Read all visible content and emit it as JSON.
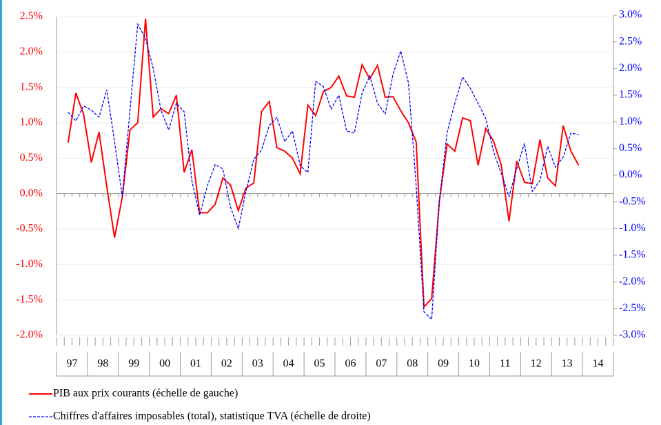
{
  "chart_data": {
    "type": "line",
    "categories": [
      "97",
      null,
      null,
      null,
      "98",
      null,
      null,
      null,
      "99",
      null,
      null,
      null,
      "00",
      null,
      null,
      null,
      "01",
      null,
      null,
      null,
      "02",
      null,
      null,
      null,
      "03",
      null,
      null,
      null,
      "04",
      null,
      null,
      null,
      "05",
      null,
      null,
      null,
      "06",
      null,
      null,
      null,
      "07",
      null,
      null,
      null,
      "08",
      null,
      null,
      null,
      "09",
      null,
      null,
      null,
      "10",
      null,
      null,
      null,
      "11",
      null,
      null,
      null,
      "12",
      null,
      null,
      null,
      "13",
      null,
      null,
      null,
      "14",
      null,
      null,
      null
    ],
    "series": [
      {
        "name": "PIB aux prix courants (échelle de gauche)",
        "color": "#ff0000",
        "style": "solid",
        "values": [
          null,
          0.72,
          1.42,
          1.12,
          0.44,
          0.87,
          0.1,
          -0.62,
          -0.05,
          0.9,
          1.0,
          2.47,
          1.08,
          1.2,
          1.13,
          1.39,
          0.3,
          0.62,
          -0.27,
          -0.27,
          -0.15,
          0.22,
          0.12,
          -0.24,
          0.08,
          0.15,
          1.16,
          1.3,
          0.65,
          0.6,
          0.5,
          0.28,
          1.25,
          1.1,
          1.44,
          1.5,
          1.66,
          1.38,
          1.36,
          1.82,
          1.62,
          1.81,
          1.36,
          1.37,
          1.17,
          1.0,
          0.73,
          -1.6,
          -1.48,
          -0.1,
          0.7,
          0.6,
          1.07,
          1.03,
          0.4,
          0.92,
          0.74,
          0.4,
          -0.39,
          0.46,
          0.16,
          0.14,
          0.76,
          0.22,
          0.11,
          0.96,
          0.6,
          0.4,
          null,
          null,
          null,
          null
        ]
      },
      {
        "name": "Chiffres d'affaires imposables (total), statistique TVA (échelle de droite)",
        "color": "#0000ff",
        "style": "dashed",
        "axis": "y2",
        "values": [
          null,
          1.18,
          1.02,
          1.3,
          1.22,
          1.09,
          1.6,
          0.63,
          -0.4,
          1.22,
          2.83,
          2.57,
          2.0,
          1.22,
          0.85,
          1.35,
          1.19,
          -0.1,
          -0.75,
          -0.2,
          0.2,
          0.12,
          -0.6,
          -1.0,
          -0.3,
          0.3,
          0.47,
          0.93,
          1.08,
          0.63,
          0.83,
          0.18,
          0.05,
          1.76,
          1.66,
          1.24,
          1.5,
          0.83,
          0.79,
          1.54,
          1.86,
          1.35,
          1.15,
          1.89,
          2.33,
          1.73,
          -0.2,
          -2.56,
          -2.7,
          -0.47,
          0.8,
          1.35,
          1.84,
          1.63,
          1.35,
          1.06,
          0.44,
          0.03,
          -0.4,
          0.12,
          0.6,
          -0.3,
          -0.1,
          0.54,
          0.15,
          0.34,
          0.79,
          0.76,
          null,
          null,
          null,
          null
        ]
      }
    ],
    "ylim": [
      -2.0,
      2.5
    ],
    "yticks": [
      {
        "value": -2.0,
        "label": "-2.0%"
      },
      {
        "value": -1.5,
        "label": "-1.5%"
      },
      {
        "value": -1.0,
        "label": "-1.0%"
      },
      {
        "value": -0.5,
        "label": "-0.5%"
      },
      {
        "value": 0,
        "label": "0.0%"
      },
      {
        "value": 0.5,
        "label": "0.5%"
      },
      {
        "value": 1.0,
        "label": "1.0%"
      },
      {
        "value": 1.5,
        "label": "1.5%"
      },
      {
        "value": 2.0,
        "label": "2.0%"
      },
      {
        "value": 2.5,
        "label": "2.5%"
      }
    ],
    "y2lim": [
      -3.0,
      3.0
    ],
    "y2ticks": [
      {
        "value": -3.0,
        "label": "-3.0%"
      },
      {
        "value": -2.5,
        "label": "-2.5%"
      },
      {
        "value": -2.0,
        "label": "-2.0%"
      },
      {
        "value": -1.5,
        "label": "-1.5%"
      },
      {
        "value": -1.0,
        "label": "-1.0%"
      },
      {
        "value": -0.5,
        "label": "-0.5%"
      },
      {
        "value": 0,
        "label": "0.0%"
      },
      {
        "value": 0.5,
        "label": "0.5%"
      },
      {
        "value": 1.0,
        "label": "1.0%"
      },
      {
        "value": 1.5,
        "label": "1.5%"
      },
      {
        "value": 2.0,
        "label": "2.0%"
      },
      {
        "value": 2.5,
        "label": "2.5%"
      },
      {
        "value": 3.0,
        "label": "3.0%"
      }
    ],
    "y_color": "#ff0000",
    "y2_color": "#0000ff",
    "grid": true,
    "legend": "bottom"
  }
}
